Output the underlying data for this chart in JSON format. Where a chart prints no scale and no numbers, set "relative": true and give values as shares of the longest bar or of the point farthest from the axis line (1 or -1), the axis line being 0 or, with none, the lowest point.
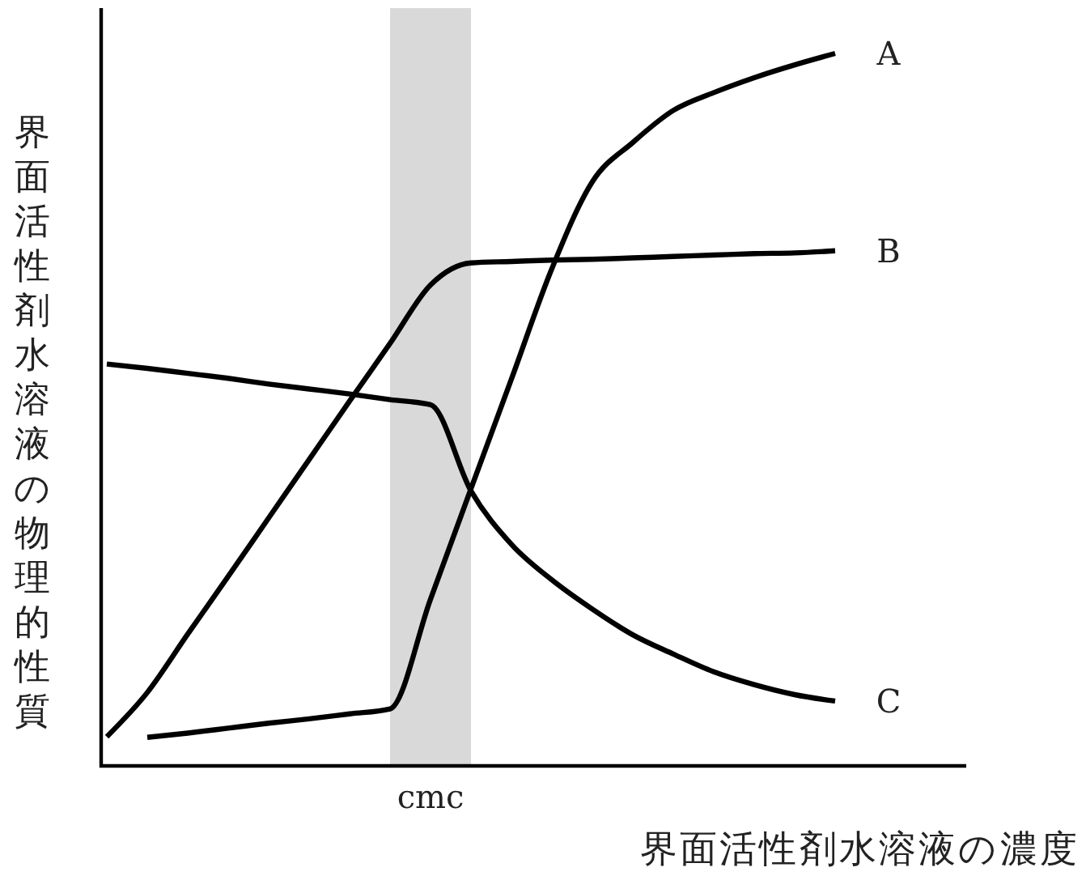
{
  "chart_data": {
    "type": "line",
    "relative": true,
    "xlabel": "界面活性剤水溶液の濃度",
    "ylabel": "界面活性剤水溶液の物理的性質",
    "annotations": [
      "cmc"
    ],
    "categories": [
      null,
      null,
      null,
      null,
      null,
      null,
      null,
      null,
      null,
      null,
      null,
      null,
      null,
      null,
      null,
      null,
      null,
      null,
      null
    ],
    "series": [
      {
        "name": "A",
        "color": "#000000",
        "values": [
          null,
          0.04,
          0.046,
          0.053,
          0.06,
          0.066,
          0.073,
          0.08,
          0.234,
          0.389,
          0.543,
          0.698,
          0.82,
          0.875,
          0.92,
          0.945,
          0.966,
          0.984,
          1
        ]
      },
      {
        "name": "B",
        "color": "#000000",
        "values": [
          0.041,
          0.103,
          0.185,
          0.266,
          0.348,
          0.43,
          0.512,
          0.593,
          0.675,
          0.706,
          0.708,
          0.71,
          0.711,
          0.713,
          0.715,
          0.717,
          0.719,
          0.72,
          0.723
        ]
      },
      {
        "name": "C",
        "color": "#000000",
        "values": [
          0.564,
          0.558,
          0.551,
          0.544,
          0.536,
          0.529,
          0.522,
          0.514,
          0.507,
          0.386,
          0.311,
          0.261,
          0.22,
          0.184,
          0.157,
          0.132,
          0.114,
          0.1,
          0.091
        ]
      }
    ]
  }
}
